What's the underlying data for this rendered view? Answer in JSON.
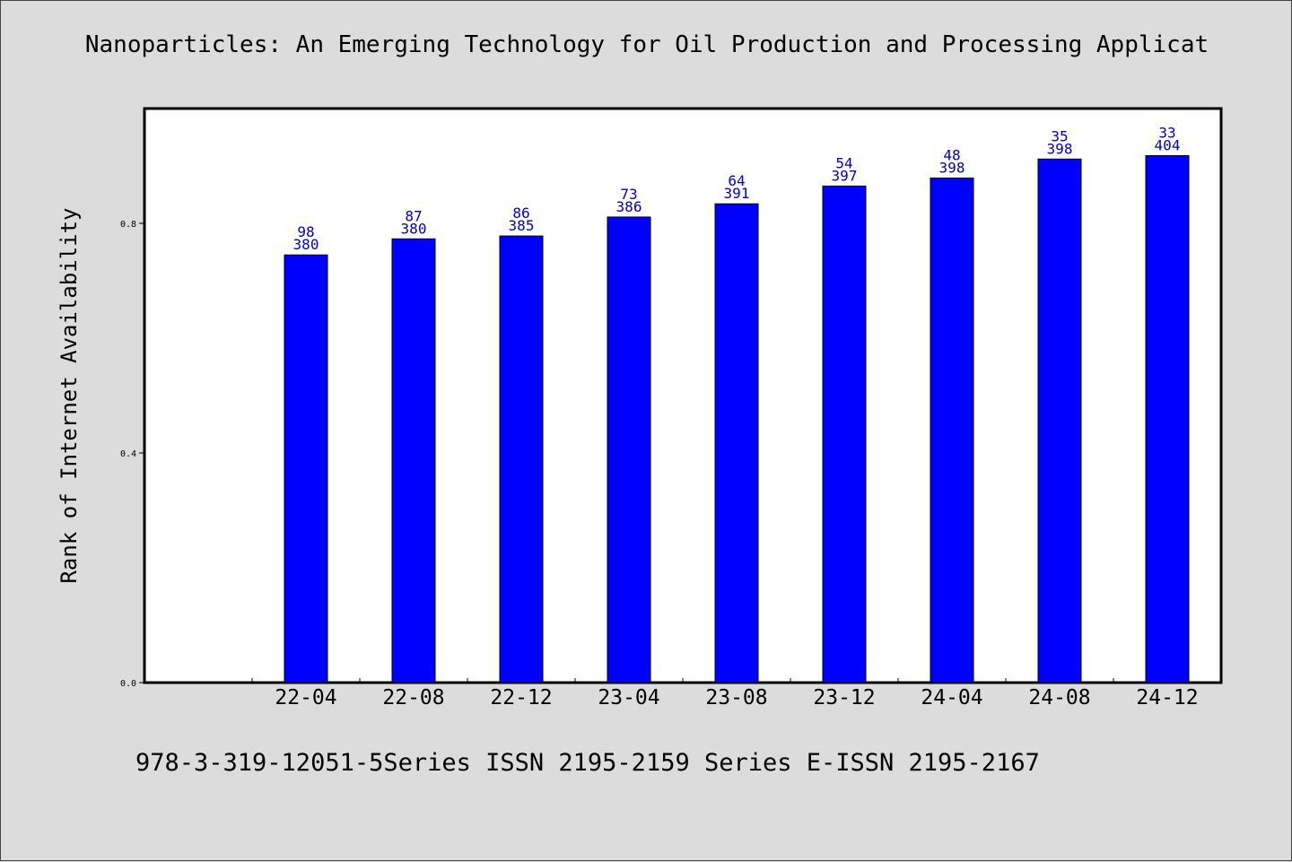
{
  "title": "Nanoparticles: An Emerging Technology for Oil Production and Processing Applicat",
  "footer": "978-3-319-12051-5Series ISSN 2195-2159 Series E-ISSN 2195-2167",
  "chart_data": {
    "type": "bar",
    "ylabel": "Rank of Internet Availability",
    "xlabel": "",
    "ylim": [
      0,
      1.0
    ],
    "yticks": [
      0.0,
      0.4,
      0.8
    ],
    "ytick_labels": [
      "0.0",
      "0.4",
      "0.8"
    ],
    "grid": false,
    "categories": [
      "22-04",
      "22-08",
      "22-12",
      "23-04",
      "23-08",
      "23-12",
      "24-04",
      "24-08",
      "24-12"
    ],
    "values": [
      0.745,
      0.773,
      0.778,
      0.811,
      0.834,
      0.865,
      0.879,
      0.912,
      0.918
    ],
    "labels_top": [
      "98",
      "87",
      "86",
      "73",
      "64",
      "54",
      "48",
      "35",
      "33"
    ],
    "labels_bottom": [
      "380",
      "380",
      "385",
      "386",
      "391",
      "397",
      "398",
      "398",
      "404"
    ],
    "colors": {
      "bar": "#0000ff",
      "label": "#0000cc",
      "plot_bg": "#ffffff",
      "page_bg": "#dcdcdc"
    }
  }
}
